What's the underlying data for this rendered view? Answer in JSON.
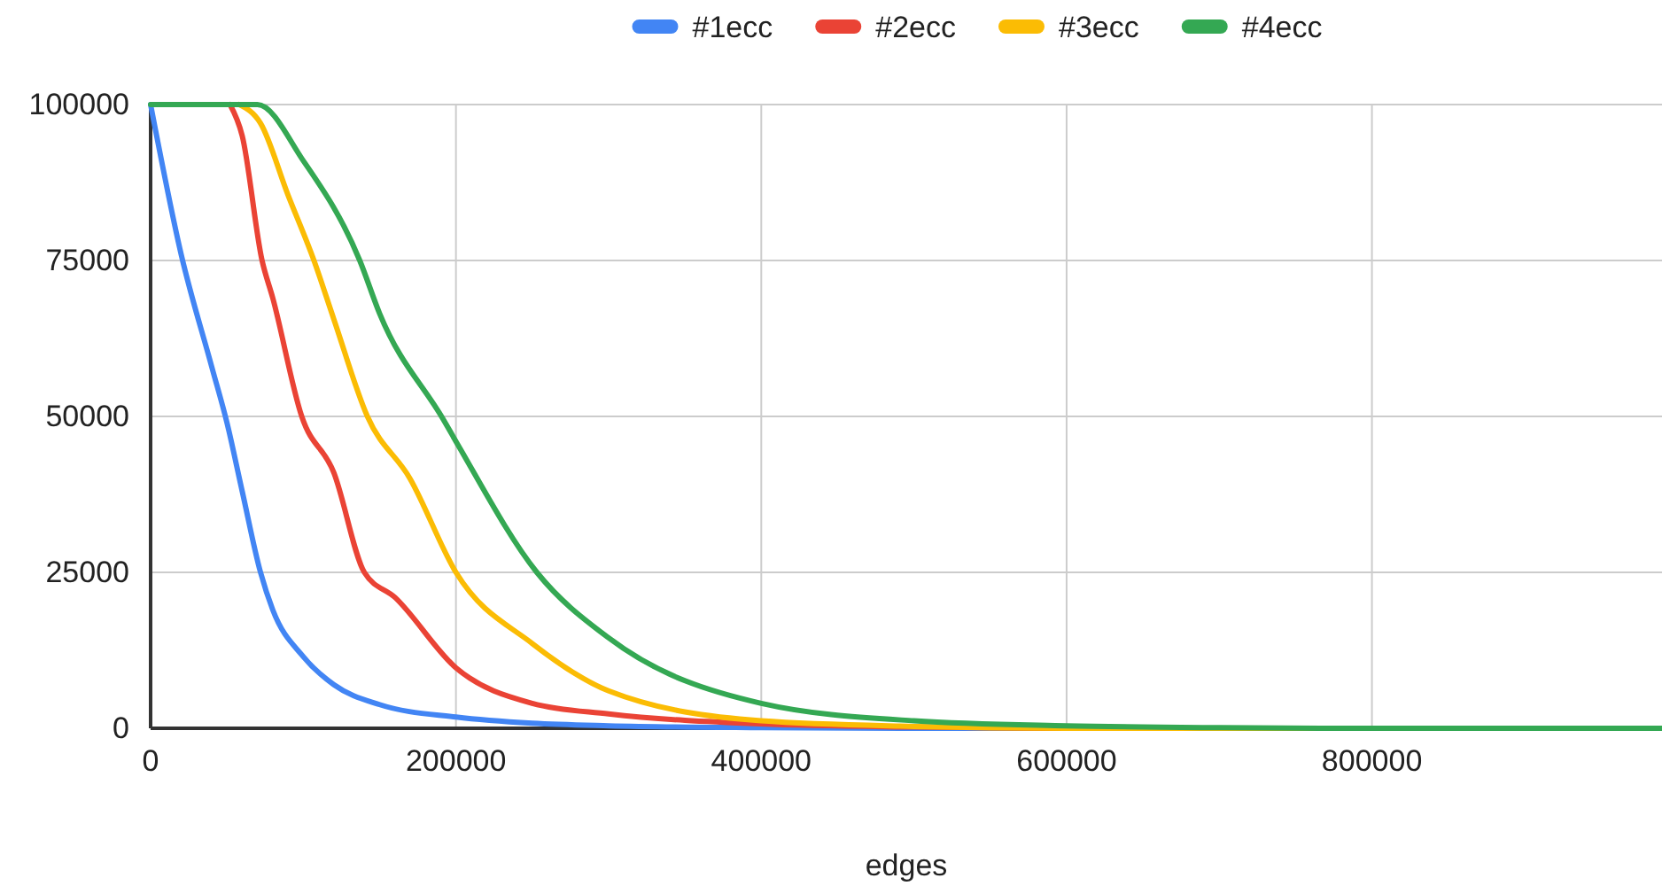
{
  "chart_data": {
    "type": "line",
    "xlabel": "edges",
    "xlim": [
      0,
      990000
    ],
    "xticks": [
      0,
      200000,
      400000,
      600000,
      800000
    ],
    "ylim": [
      0,
      100000
    ],
    "yticks": [
      0,
      25000,
      50000,
      75000,
      100000
    ],
    "grid": true,
    "legend": "top",
    "marker": "none",
    "line_style": "solid",
    "series": [
      {
        "name": "#1ecc",
        "color": "#4285f4",
        "x": [
          0,
          20000,
          40000,
          50000,
          60000,
          72000,
          80000,
          100000,
          120000,
          150000,
          200000,
          250000,
          300000,
          400000,
          500000,
          990000
        ],
        "values": [
          100000,
          76000,
          58000,
          49000,
          38000,
          25000,
          19000,
          11500,
          7000,
          3800,
          1800,
          800,
          400,
          100,
          0,
          0
        ]
      },
      {
        "name": "#2ecc",
        "color": "#ea4335",
        "x": [
          52000,
          60000,
          73000,
          80000,
          99000,
          120000,
          140000,
          160000,
          200000,
          250000,
          300000,
          400000,
          500000,
          600000,
          990000
        ],
        "values": [
          100000,
          95000,
          75000,
          69000,
          50000,
          41000,
          25000,
          21000,
          9700,
          4000,
          2300,
          700,
          200,
          0,
          0
        ]
      },
      {
        "name": "#3ecc",
        "color": "#fbbc04",
        "x": [
          58000,
          72000,
          90000,
          107000,
          120000,
          142000,
          170000,
          200000,
          250000,
          300000,
          400000,
          500000,
          600000,
          990000
        ],
        "values": [
          100000,
          97000,
          85500,
          75000,
          65600,
          50000,
          40000,
          25000,
          13600,
          6000,
          1200,
          300,
          0,
          0
        ]
      },
      {
        "name": "#4ecc",
        "color": "#34a853",
        "x": [
          0,
          70000,
          100000,
          137000,
          150000,
          192000,
          200000,
          253000,
          300000,
          400000,
          500000,
          600000,
          700000,
          800000,
          990000
        ],
        "values": [
          100000,
          100000,
          91000,
          75000,
          66500,
          49400,
          46000,
          25000,
          14500,
          4000,
          1200,
          400,
          100,
          0,
          0
        ]
      }
    ]
  }
}
